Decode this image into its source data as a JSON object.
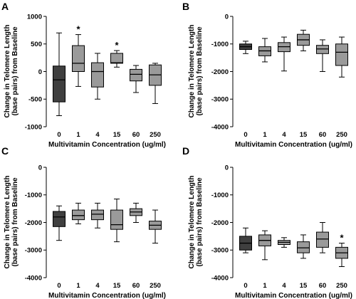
{
  "chart_data": [
    {
      "type": "box",
      "panel": "A",
      "title": "",
      "xlabel": "Multivitamin Concentration (ug/ml)",
      "ylabel_line1": "Change in Telomere Length",
      "ylabel_line2": "(base pairs) from Baseline",
      "categories": [
        "0",
        "1",
        "4",
        "15",
        "60",
        "250"
      ],
      "ylim": [
        -1000,
        1000
      ],
      "yticks": [
        "-1000",
        "-500",
        "0",
        "500",
        "1000"
      ],
      "ytick_values": [
        -1000,
        -500,
        0,
        500,
        1000
      ],
      "boxes": [
        {
          "min": -800,
          "q1": -550,
          "median": -150,
          "q3": 100,
          "max": 700
        },
        {
          "min": -270,
          "q1": 0,
          "median": 150,
          "q3": 470,
          "max": 670
        },
        {
          "min": -500,
          "q1": -280,
          "median": 0,
          "q3": 160,
          "max": 330
        },
        {
          "min": 80,
          "q1": 150,
          "median": 160,
          "q3": 330,
          "max": 380
        },
        {
          "min": -380,
          "q1": -170,
          "median": -50,
          "q3": 40,
          "max": 110
        },
        {
          "min": -580,
          "q1": -250,
          "median": -60,
          "q3": 120,
          "max": 150
        }
      ],
      "significance": [
        {
          "category": "1",
          "mark": "*"
        },
        {
          "category": "15",
          "mark": "*"
        }
      ]
    },
    {
      "type": "box",
      "panel": "B",
      "title": "",
      "xlabel": "Multivitamin Concentration (ug/ml)",
      "ylabel_line1": "Change in Telomere Length",
      "ylabel_line2": "(base pairs) from Baseline",
      "categories": [
        "0",
        "1",
        "4",
        "15",
        "60",
        "250"
      ],
      "ylim": [
        -4000,
        0
      ],
      "yticks": [
        "-4000",
        "-3000",
        "-2000",
        "-1000",
        "0"
      ],
      "ytick_values": [
        -4000,
        -3000,
        -2000,
        -1000,
        0
      ],
      "boxes": [
        {
          "min": -1350,
          "q1": -1200,
          "median": -1100,
          "q3": -1000,
          "max": -900
        },
        {
          "min": -1650,
          "q1": -1430,
          "median": -1250,
          "q3": -1100,
          "max": -800
        },
        {
          "min": -1980,
          "q1": -1280,
          "median": -1100,
          "q3": -950,
          "max": -750
        },
        {
          "min": -1250,
          "q1": -1050,
          "median": -850,
          "q3": -650,
          "max": -500
        },
        {
          "min": -2000,
          "q1": -1350,
          "median": -1180,
          "q3": -1050,
          "max": -850
        },
        {
          "min": -2200,
          "q1": -1780,
          "median": -1300,
          "q3": -1000,
          "max": -750
        }
      ],
      "significance": []
    },
    {
      "type": "box",
      "panel": "C",
      "title": "",
      "xlabel": "Multivitamin Concentration (ug/ml)",
      "ylabel_line1": "Change in Telomere Length",
      "ylabel_line2": "(base pairs) from Baseline",
      "categories": [
        "0",
        "1",
        "4",
        "15",
        "60",
        "250"
      ],
      "ylim": [
        -4000,
        0
      ],
      "yticks": [
        "-4000",
        "-3000",
        "-2000",
        "-1000",
        "0"
      ],
      "ytick_values": [
        -4000,
        -3000,
        -2000,
        -1000,
        0
      ],
      "boxes": [
        {
          "min": -2650,
          "q1": -2150,
          "median": -1800,
          "q3": -1600,
          "max": -1400
        },
        {
          "min": -2050,
          "q1": -1900,
          "median": -1750,
          "q3": -1550,
          "max": -1300
        },
        {
          "min": -2200,
          "q1": -1900,
          "median": -1700,
          "q3": -1550,
          "max": -1300
        },
        {
          "min": -2700,
          "q1": -2250,
          "median": -2080,
          "q3": -1550,
          "max": -1150
        },
        {
          "min": -2000,
          "q1": -1750,
          "median": -1620,
          "q3": -1500,
          "max": -1300
        },
        {
          "min": -2750,
          "q1": -2250,
          "median": -2100,
          "q3": -1950,
          "max": -1550
        }
      ],
      "significance": []
    },
    {
      "type": "box",
      "panel": "D",
      "title": "",
      "xlabel": "Multivitamin Concentration (ug/ml)",
      "ylabel_line1": "Change in Telomere Length",
      "ylabel_line2": "(base pairs) from Baseline",
      "categories": [
        "0",
        "1",
        "4",
        "15",
        "60",
        "250"
      ],
      "ylim": [
        -4000,
        0
      ],
      "yticks": [
        "-4000",
        "-3000",
        "-2000",
        "-1000",
        "0"
      ],
      "ytick_values": [
        -4000,
        -3000,
        -2000,
        -1000,
        0
      ],
      "boxes": [
        {
          "min": -3100,
          "q1": -3000,
          "median": -2750,
          "q3": -2500,
          "max": -2200
        },
        {
          "min": -3350,
          "q1": -2850,
          "median": -2650,
          "q3": -2450,
          "max": -2300
        },
        {
          "min": -2900,
          "q1": -2800,
          "median": -2720,
          "q3": -2650,
          "max": -2550
        },
        {
          "min": -3300,
          "q1": -3100,
          "median": -2920,
          "q3": -2700,
          "max": -2450
        },
        {
          "min": -3100,
          "q1": -2900,
          "median": -2600,
          "q3": -2350,
          "max": -2000
        },
        {
          "min": -3600,
          "q1": -3300,
          "median": -3100,
          "q3": -2900,
          "max": -2750
        }
      ],
      "significance": [
        {
          "category": "250",
          "mark": "*"
        }
      ]
    }
  ],
  "colors": {
    "first_box": "#3f3f3f",
    "other_boxes": "#9a9a9a",
    "line": "#000000"
  }
}
